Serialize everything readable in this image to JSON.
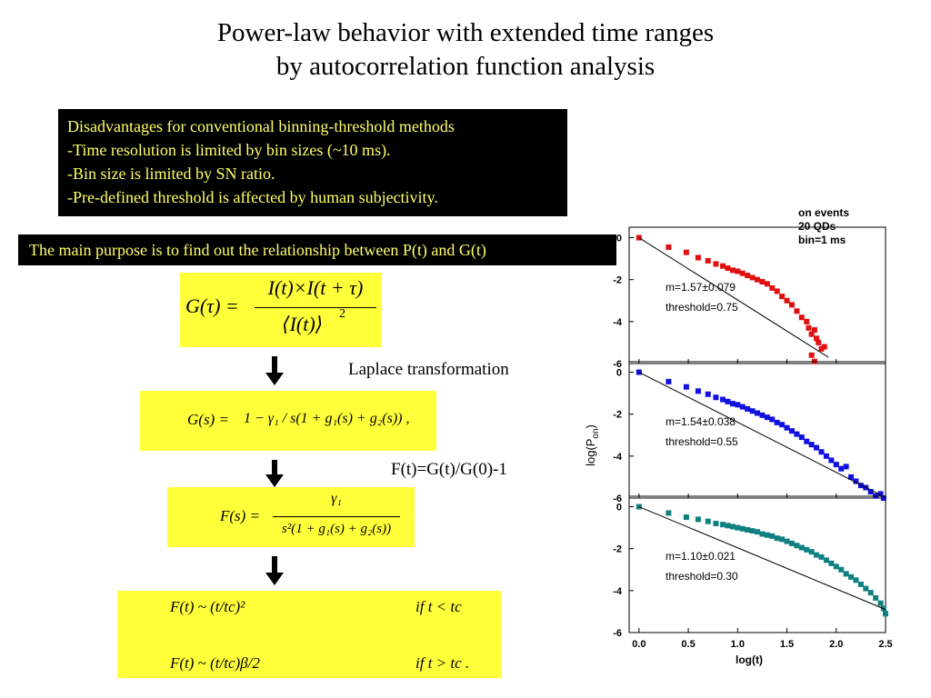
{
  "title": {
    "line1": "Power-law behavior with extended time ranges",
    "line2": "by autocorrelation function analysis"
  },
  "disadvantages": {
    "heading": "Disadvantages for conventional binning-threshold methods",
    "items": [
      "-Time resolution is limited by bin sizes (~10 ms).",
      "-Bin size is limited by SN ratio.",
      "-Pre-defined threshold is affected by human subjectivity."
    ]
  },
  "purpose": "The main purpose is to find out the relationship between P(t) and G(t)",
  "labels": {
    "laplace": "Laplace transformation",
    "ft_def": "F(t)=G(t)/G(0)-1"
  },
  "equations": {
    "g_tau_lhs": "G(τ) =",
    "g_tau_num": "I(t)×I(t + τ)",
    "g_tau_den": "⟨I(t)⟩",
    "g_tau_den_exp": "2",
    "gs_lhs": "G(s)  =",
    "gs_body": "1 − γ₁ / s(1 + g₁(s) + g₂(s)) ,",
    "fs_lhs": "F(s)  =",
    "fs_num": "γ₁",
    "fs_den": "s²(1 + g₁(s) + g₂(s))",
    "f1": "F(t) ~ (t/tc)²",
    "f1_cond": "if  t  <  tc",
    "f2": "F(t) ~ (t/tc)β/2",
    "f2_cond": "if   t  >  tc ."
  },
  "chart_data": {
    "type": "scatter",
    "legend_text": {
      "line1": "on events",
      "line2": "20 QDs",
      "line3": "bin=1 ms"
    },
    "xlabel": "log(t)",
    "ylabel": "log(P",
    "ylabel_sub": "on",
    "ylabel_close": ")",
    "xlim": [
      -0.1,
      2.5
    ],
    "ylim": [
      -6,
      0.5
    ],
    "xticks": [
      "0.0",
      "0.5",
      "1.0",
      "1.5",
      "2.0",
      "2.5"
    ],
    "yticks": [
      "0",
      "-2",
      "-4",
      "-6"
    ],
    "panels": [
      {
        "color": "#e01010",
        "annotation": "m=1.57±0.079",
        "threshold": "threshold=0.75",
        "xmax": 1.92,
        "points": [
          [
            0,
            0
          ],
          [
            0.3,
            -0.45
          ],
          [
            0.48,
            -0.7
          ],
          [
            0.6,
            -0.95
          ],
          [
            0.7,
            -1.1
          ],
          [
            0.78,
            -1.25
          ],
          [
            0.85,
            -1.35
          ],
          [
            0.9,
            -1.45
          ],
          [
            0.95,
            -1.55
          ],
          [
            1.0,
            -1.6
          ],
          [
            1.05,
            -1.7
          ],
          [
            1.1,
            -1.8
          ],
          [
            1.15,
            -1.9
          ],
          [
            1.2,
            -2.0
          ],
          [
            1.25,
            -2.1
          ],
          [
            1.3,
            -2.2
          ],
          [
            1.35,
            -2.4
          ],
          [
            1.4,
            -2.55
          ],
          [
            1.45,
            -2.8
          ],
          [
            1.5,
            -3.0
          ],
          [
            1.55,
            -3.2
          ],
          [
            1.6,
            -3.5
          ],
          [
            1.65,
            -3.8
          ],
          [
            1.7,
            -4.0
          ],
          [
            1.72,
            -4.3
          ],
          [
            1.75,
            -4.6
          ],
          [
            1.78,
            -4.4
          ],
          [
            1.8,
            -4.8
          ],
          [
            1.82,
            -5.0
          ],
          [
            1.75,
            -5.6
          ],
          [
            1.78,
            -5.9
          ],
          [
            1.85,
            -5.3
          ],
          [
            1.88,
            -5.2
          ]
        ],
        "fit": [
          [
            0,
            0
          ],
          [
            1.92,
            -5.7
          ]
        ]
      },
      {
        "color": "#1010e0",
        "annotation": "m=1.54±0.038",
        "threshold": "threshold=0.55",
        "xmax": 2.5,
        "points": [
          [
            0,
            0
          ],
          [
            0.3,
            -0.45
          ],
          [
            0.48,
            -0.7
          ],
          [
            0.6,
            -0.9
          ],
          [
            0.7,
            -1.05
          ],
          [
            0.78,
            -1.2
          ],
          [
            0.85,
            -1.3
          ],
          [
            0.9,
            -1.4
          ],
          [
            0.95,
            -1.5
          ],
          [
            1.0,
            -1.55
          ],
          [
            1.05,
            -1.65
          ],
          [
            1.1,
            -1.75
          ],
          [
            1.15,
            -1.85
          ],
          [
            1.2,
            -1.95
          ],
          [
            1.25,
            -2.05
          ],
          [
            1.3,
            -2.15
          ],
          [
            1.35,
            -2.25
          ],
          [
            1.4,
            -2.4
          ],
          [
            1.45,
            -2.5
          ],
          [
            1.5,
            -2.65
          ],
          [
            1.55,
            -2.8
          ],
          [
            1.6,
            -2.95
          ],
          [
            1.65,
            -3.1
          ],
          [
            1.7,
            -3.3
          ],
          [
            1.75,
            -3.45
          ],
          [
            1.8,
            -3.6
          ],
          [
            1.85,
            -3.8
          ],
          [
            1.9,
            -4.0
          ],
          [
            1.95,
            -4.2
          ],
          [
            2.0,
            -4.4
          ],
          [
            2.05,
            -4.6
          ],
          [
            2.1,
            -4.5
          ],
          [
            2.15,
            -5.0
          ],
          [
            2.2,
            -5.2
          ],
          [
            2.25,
            -5.4
          ],
          [
            2.3,
            -5.5
          ],
          [
            2.35,
            -5.7
          ],
          [
            2.4,
            -5.9
          ],
          [
            2.45,
            -5.8
          ],
          [
            2.48,
            -6.0
          ]
        ],
        "fit": [
          [
            0,
            0
          ],
          [
            2.45,
            -5.85
          ]
        ]
      },
      {
        "color": "#108080",
        "annotation": "m=1.10±0.021",
        "threshold": "threshold=0.30",
        "xmax": 2.5,
        "points": [
          [
            0,
            0
          ],
          [
            0.3,
            -0.3
          ],
          [
            0.48,
            -0.5
          ],
          [
            0.6,
            -0.6
          ],
          [
            0.7,
            -0.7
          ],
          [
            0.78,
            -0.8
          ],
          [
            0.85,
            -0.85
          ],
          [
            0.9,
            -0.9
          ],
          [
            0.95,
            -0.95
          ],
          [
            1.0,
            -1.0
          ],
          [
            1.05,
            -1.05
          ],
          [
            1.1,
            -1.1
          ],
          [
            1.15,
            -1.15
          ],
          [
            1.2,
            -1.2
          ],
          [
            1.25,
            -1.3
          ],
          [
            1.3,
            -1.35
          ],
          [
            1.35,
            -1.4
          ],
          [
            1.4,
            -1.5
          ],
          [
            1.45,
            -1.55
          ],
          [
            1.5,
            -1.65
          ],
          [
            1.55,
            -1.75
          ],
          [
            1.6,
            -1.85
          ],
          [
            1.65,
            -1.95
          ],
          [
            1.7,
            -2.05
          ],
          [
            1.75,
            -2.15
          ],
          [
            1.8,
            -2.3
          ],
          [
            1.85,
            -2.4
          ],
          [
            1.9,
            -2.55
          ],
          [
            1.95,
            -2.7
          ],
          [
            2.0,
            -2.85
          ],
          [
            2.05,
            -3.0
          ],
          [
            2.1,
            -3.2
          ],
          [
            2.15,
            -3.35
          ],
          [
            2.2,
            -3.5
          ],
          [
            2.25,
            -3.7
          ],
          [
            2.3,
            -3.9
          ],
          [
            2.35,
            -4.1
          ],
          [
            2.4,
            -4.35
          ],
          [
            2.45,
            -4.6
          ],
          [
            2.48,
            -4.85
          ],
          [
            2.5,
            -5.1
          ]
        ],
        "fit": [
          [
            0,
            0
          ],
          [
            2.5,
            -4.9
          ]
        ]
      }
    ]
  }
}
